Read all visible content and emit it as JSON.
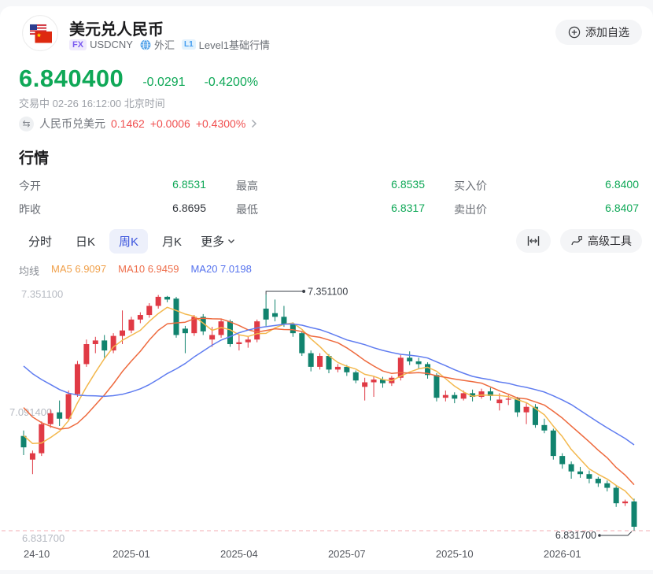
{
  "header": {
    "title": "美元兑人民币",
    "fx_badge": "FX",
    "symbol": "USDCNY",
    "market_type": "外汇",
    "level_badge": "L1",
    "level_text": "Level1基础行情",
    "add_watchlist": "添加自选"
  },
  "quote": {
    "price": "6.840400",
    "change": "-0.0291",
    "change_pct": "-0.4200%",
    "status": "交易中 02-26 16:12:00 北京时间",
    "inverse": {
      "label": "人民币兑美元",
      "price": "0.1462",
      "change": "+0.0006",
      "change_pct": "+0.4300%"
    }
  },
  "market": {
    "title": "行情",
    "cols": [
      {
        "rows": [
          {
            "label": "今开",
            "value": "6.8531"
          },
          {
            "label": "昨收",
            "value": "6.8695"
          }
        ]
      },
      {
        "rows": [
          {
            "label": "最高",
            "value": "6.8535"
          },
          {
            "label": "最低",
            "value": "6.8317"
          }
        ]
      },
      {
        "rows": [
          {
            "label": "买入价",
            "value": "6.8400"
          },
          {
            "label": "卖出价",
            "value": "6.8407"
          }
        ]
      }
    ]
  },
  "tabs": {
    "items": [
      {
        "label": "分时"
      },
      {
        "label": "日K"
      },
      {
        "label": "周K"
      },
      {
        "label": "月K"
      }
    ],
    "active": "周K",
    "more_label": "更多"
  },
  "toolbar": {
    "advanced_label": "高级工具"
  },
  "ma_legend": {
    "label": "均线",
    "ma5": "MA5 6.9097",
    "ma10": "MA10 6.9459",
    "ma20": "MA20 7.0198"
  },
  "chart_data": {
    "type": "candlestick",
    "period": "weekly",
    "y_axis": {
      "max": 7.3511,
      "min": 6.8317,
      "labels": {
        "top": "7.351100",
        "mid": "7.091400",
        "low": "6.831700"
      }
    },
    "x_ticks": {
      "indices": [
        0,
        12,
        24,
        36,
        48,
        60
      ],
      "labels": [
        "24-10",
        "2025-01",
        "2025-04",
        "2025-07",
        "2025-10",
        "2026-01"
      ]
    },
    "annotations": {
      "high": "7.351100",
      "low": "6.831700"
    },
    "ma_periods": [
      5,
      10,
      20
    ],
    "pre_closes": [
      7.34,
      7.32,
      7.31,
      7.3,
      7.29,
      7.28,
      7.27,
      7.26,
      7.25,
      7.23,
      7.21,
      7.19,
      7.17,
      7.14,
      7.11,
      7.09,
      7.06,
      7.03,
      7.01
    ],
    "candles": [
      [
        7.04,
        7.052,
        6.998,
        7.015
      ],
      [
        6.988,
        7.008,
        6.956,
        7.002
      ],
      [
        7.002,
        7.072,
        6.996,
        7.066
      ],
      [
        7.066,
        7.098,
        7.058,
        7.09
      ],
      [
        7.092,
        7.118,
        7.062,
        7.078
      ],
      [
        7.078,
        7.14,
        7.072,
        7.132
      ],
      [
        7.132,
        7.205,
        7.126,
        7.198
      ],
      [
        7.198,
        7.252,
        7.192,
        7.242
      ],
      [
        7.242,
        7.258,
        7.222,
        7.25
      ],
      [
        7.25,
        7.262,
        7.212,
        7.228
      ],
      [
        7.228,
        7.266,
        7.222,
        7.26
      ],
      [
        7.26,
        7.316,
        7.242,
        7.272
      ],
      [
        7.272,
        7.302,
        7.266,
        7.296
      ],
      [
        7.296,
        7.312,
        7.288,
        7.306
      ],
      [
        7.306,
        7.332,
        7.3,
        7.326
      ],
      [
        7.326,
        7.35,
        7.32,
        7.346
      ],
      [
        7.346,
        7.348,
        7.334,
        7.34
      ],
      [
        7.342,
        7.346,
        7.256,
        7.262
      ],
      [
        7.276,
        7.282,
        7.222,
        7.266
      ],
      [
        7.266,
        7.306,
        7.26,
        7.302
      ],
      [
        7.302,
        7.308,
        7.262,
        7.27
      ],
      [
        7.252,
        7.28,
        7.236,
        7.262
      ],
      [
        7.262,
        7.296,
        7.256,
        7.292
      ],
      [
        7.292,
        7.296,
        7.236,
        7.242
      ],
      [
        7.242,
        7.262,
        7.228,
        7.246
      ],
      [
        7.246,
        7.258,
        7.234,
        7.252
      ],
      [
        7.252,
        7.296,
        7.246,
        7.292
      ],
      [
        7.32,
        7.3511,
        7.282,
        7.296
      ],
      [
        7.31,
        7.34,
        7.292,
        7.302
      ],
      [
        7.302,
        7.326,
        7.28,
        7.286
      ],
      [
        7.286,
        7.29,
        7.258,
        7.266
      ],
      [
        7.266,
        7.27,
        7.216,
        7.222
      ],
      [
        7.222,
        7.228,
        7.182,
        7.192
      ],
      [
        7.192,
        7.222,
        7.186,
        7.216
      ],
      [
        7.216,
        7.22,
        7.178,
        7.186
      ],
      [
        7.186,
        7.198,
        7.18,
        7.192
      ],
      [
        7.192,
        7.196,
        7.172,
        7.18
      ],
      [
        7.18,
        7.184,
        7.156,
        7.162
      ],
      [
        7.148,
        7.168,
        7.118,
        7.158
      ],
      [
        7.158,
        7.172,
        7.126,
        7.164
      ],
      [
        7.164,
        7.17,
        7.146,
        7.156
      ],
      [
        7.156,
        7.172,
        7.15,
        7.168
      ],
      [
        7.168,
        7.218,
        7.162,
        7.212
      ],
      [
        7.212,
        7.226,
        7.196,
        7.204
      ],
      [
        7.204,
        7.212,
        7.188,
        7.198
      ],
      [
        7.198,
        7.202,
        7.166,
        7.174
      ],
      [
        7.174,
        7.178,
        7.116,
        7.124
      ],
      [
        7.124,
        7.14,
        7.116,
        7.13
      ],
      [
        7.13,
        7.136,
        7.112,
        7.122
      ],
      [
        7.122,
        7.14,
        7.118,
        7.134
      ],
      [
        7.134,
        7.142,
        7.116,
        7.126
      ],
      [
        7.126,
        7.144,
        7.122,
        7.138
      ],
      [
        7.138,
        7.146,
        7.118,
        7.128
      ],
      [
        7.112,
        7.134,
        7.096,
        7.12
      ],
      [
        7.12,
        7.13,
        7.108,
        7.122
      ],
      [
        7.122,
        7.126,
        7.082,
        7.092
      ],
      [
        7.092,
        7.112,
        7.066,
        7.104
      ],
      [
        7.104,
        7.11,
        7.058,
        7.064
      ],
      [
        7.064,
        7.078,
        7.046,
        7.052
      ],
      [
        7.052,
        7.056,
        6.988,
        6.996
      ],
      [
        6.996,
        7.002,
        6.968,
        6.978
      ],
      [
        6.978,
        6.984,
        6.946,
        6.962
      ],
      [
        6.962,
        6.972,
        6.948,
        6.956
      ],
      [
        6.956,
        6.964,
        6.936,
        6.946
      ],
      [
        6.946,
        6.95,
        6.928,
        6.936
      ],
      [
        6.936,
        6.942,
        6.918,
        6.926
      ],
      [
        6.926,
        6.93,
        6.884,
        6.892
      ],
      [
        6.892,
        6.9,
        6.886,
        6.896
      ],
      [
        6.896,
        6.902,
        6.8317,
        6.8404
      ]
    ],
    "colors": {
      "up": "#e03a45",
      "down": "#11836e",
      "ma5": "#f3b84d",
      "ma10": "#ee6a3e",
      "ma20": "#5f7cf0",
      "low_line": "#f3adb3",
      "axis_text": "#b6bac2",
      "tick_text": "#54575e",
      "annotation": "#3a3f47"
    }
  },
  "colors": {
    "price_up": "#f04f4f",
    "price_down": "#0fa857",
    "tab_active": "#3c55dd"
  }
}
